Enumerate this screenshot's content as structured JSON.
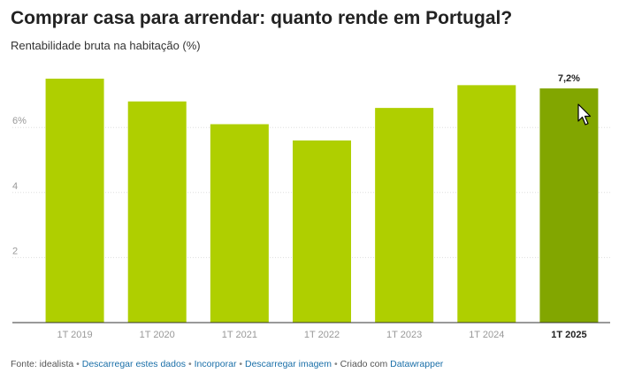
{
  "header": {
    "title": "Comprar casa para arrendar: quanto rende em Portugal?",
    "subtitle": "Rentabilidade bruta na habitação (%)"
  },
  "chart_data": {
    "type": "bar",
    "categories": [
      "1T 2019",
      "1T 2020",
      "1T 2021",
      "1T 2022",
      "1T 2023",
      "1T 2024",
      "1T 2025"
    ],
    "values": [
      7.5,
      6.8,
      6.1,
      5.6,
      6.6,
      7.3,
      7.2
    ],
    "highlight_index": 6,
    "highlight_label": "7,2%",
    "y_ticks": [
      {
        "value": 2,
        "label": "2"
      },
      {
        "value": 4,
        "label": "4"
      },
      {
        "value": 6,
        "label": "6%"
      }
    ],
    "ylim": [
      0,
      7.8
    ],
    "grid": true,
    "colors": {
      "bar": "#afcf00",
      "highlight": "#82a600",
      "grid": "#dddddd",
      "axis": "#333333"
    }
  },
  "footer": {
    "source": "Fonte: idealista",
    "sep": "•",
    "link_download_data": "Descarregar estes dados",
    "link_embed": "Incorporar",
    "link_download_image": "Descarregar imagem",
    "created_with": "Criado com",
    "link_datawrapper": "Datawrapper"
  },
  "cursor": {
    "icon": "mouse-pointer-icon"
  }
}
